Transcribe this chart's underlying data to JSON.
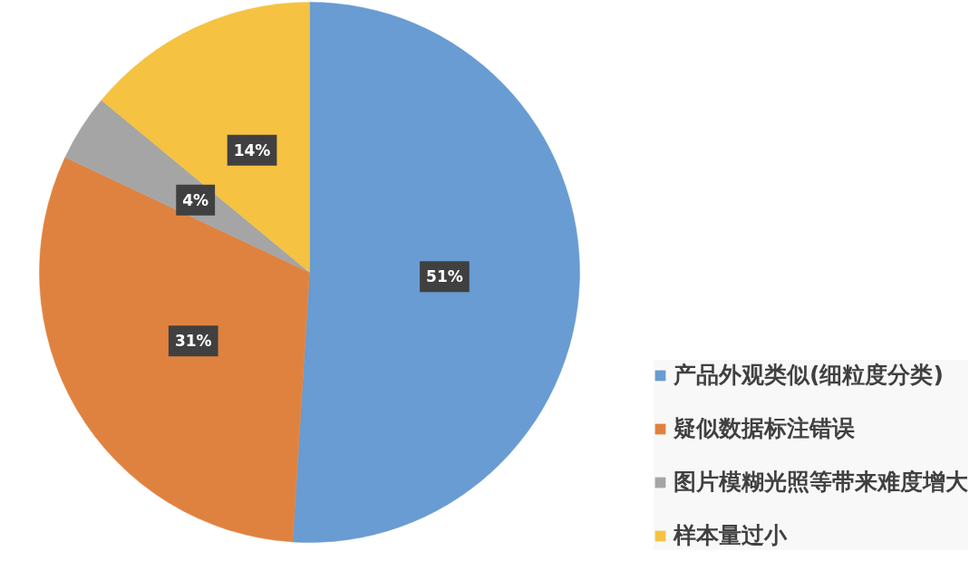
{
  "chart_data": {
    "type": "pie",
    "categories": [
      "产品外观类似(细粒度分类)",
      "疑似数据标注错误",
      "图片模糊光照等带来难度增大",
      "样本量过小"
    ],
    "values": [
      51,
      31,
      4,
      14
    ],
    "colors": [
      "#689cd2",
      "#e0823f",
      "#a5a5a5",
      "#f5c242"
    ],
    "value_labels": [
      "51%",
      "31%",
      "4%",
      "14%"
    ],
    "legend": "bottom right"
  }
}
